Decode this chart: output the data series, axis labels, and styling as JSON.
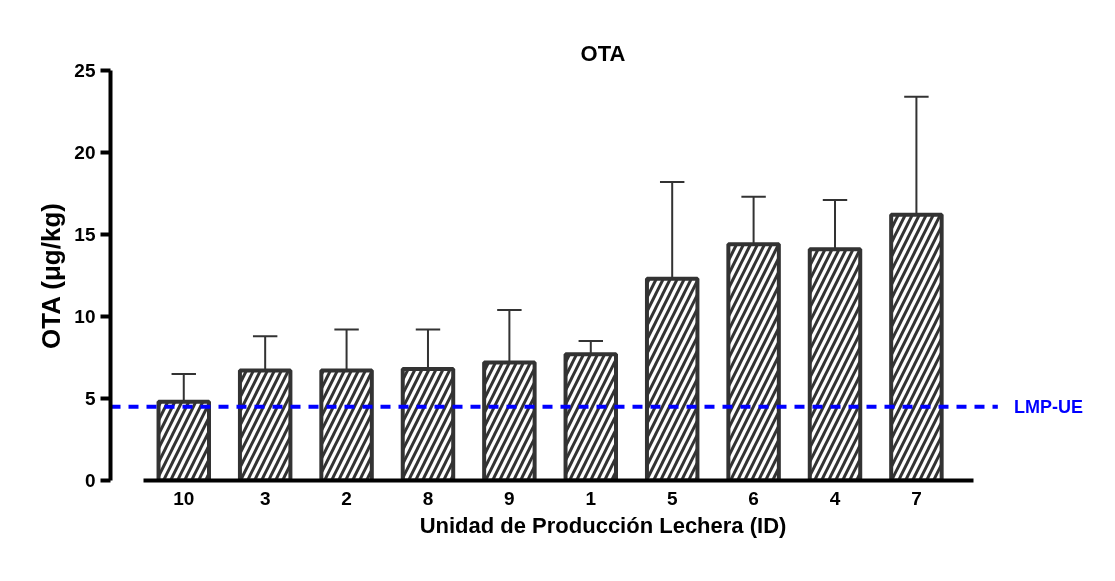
{
  "chart_data": {
    "type": "bar",
    "title": "OTA",
    "xlabel": "Unidad de Producción Lechera (ID)",
    "ylabel": "OTA (μg/kg)",
    "categories": [
      "10",
      "3",
      "2",
      "8",
      "9",
      "1",
      "5",
      "6",
      "4",
      "7"
    ],
    "values": [
      4.8,
      6.7,
      6.7,
      6.8,
      7.2,
      7.7,
      12.3,
      14.4,
      14.1,
      16.2
    ],
    "errors": [
      [
        4.8,
        6.5
      ],
      [
        6.7,
        8.8
      ],
      [
        6.7,
        9.2
      ],
      [
        6.8,
        9.2
      ],
      [
        7.2,
        10.4
      ],
      [
        7.7,
        8.5
      ],
      [
        12.3,
        18.2
      ],
      [
        14.4,
        17.3
      ],
      [
        14.1,
        17.1
      ],
      [
        16.2,
        23.4
      ]
    ],
    "color": "#333333",
    "ylim": [
      0,
      25
    ],
    "yticks": [
      0,
      5,
      10,
      15,
      20,
      25
    ],
    "grid": false,
    "ref_lines": [
      {
        "axis": "y",
        "value": 4.5,
        "label": "LMP-UE",
        "color": "#0000ff",
        "line_style": "dashed"
      }
    ]
  }
}
